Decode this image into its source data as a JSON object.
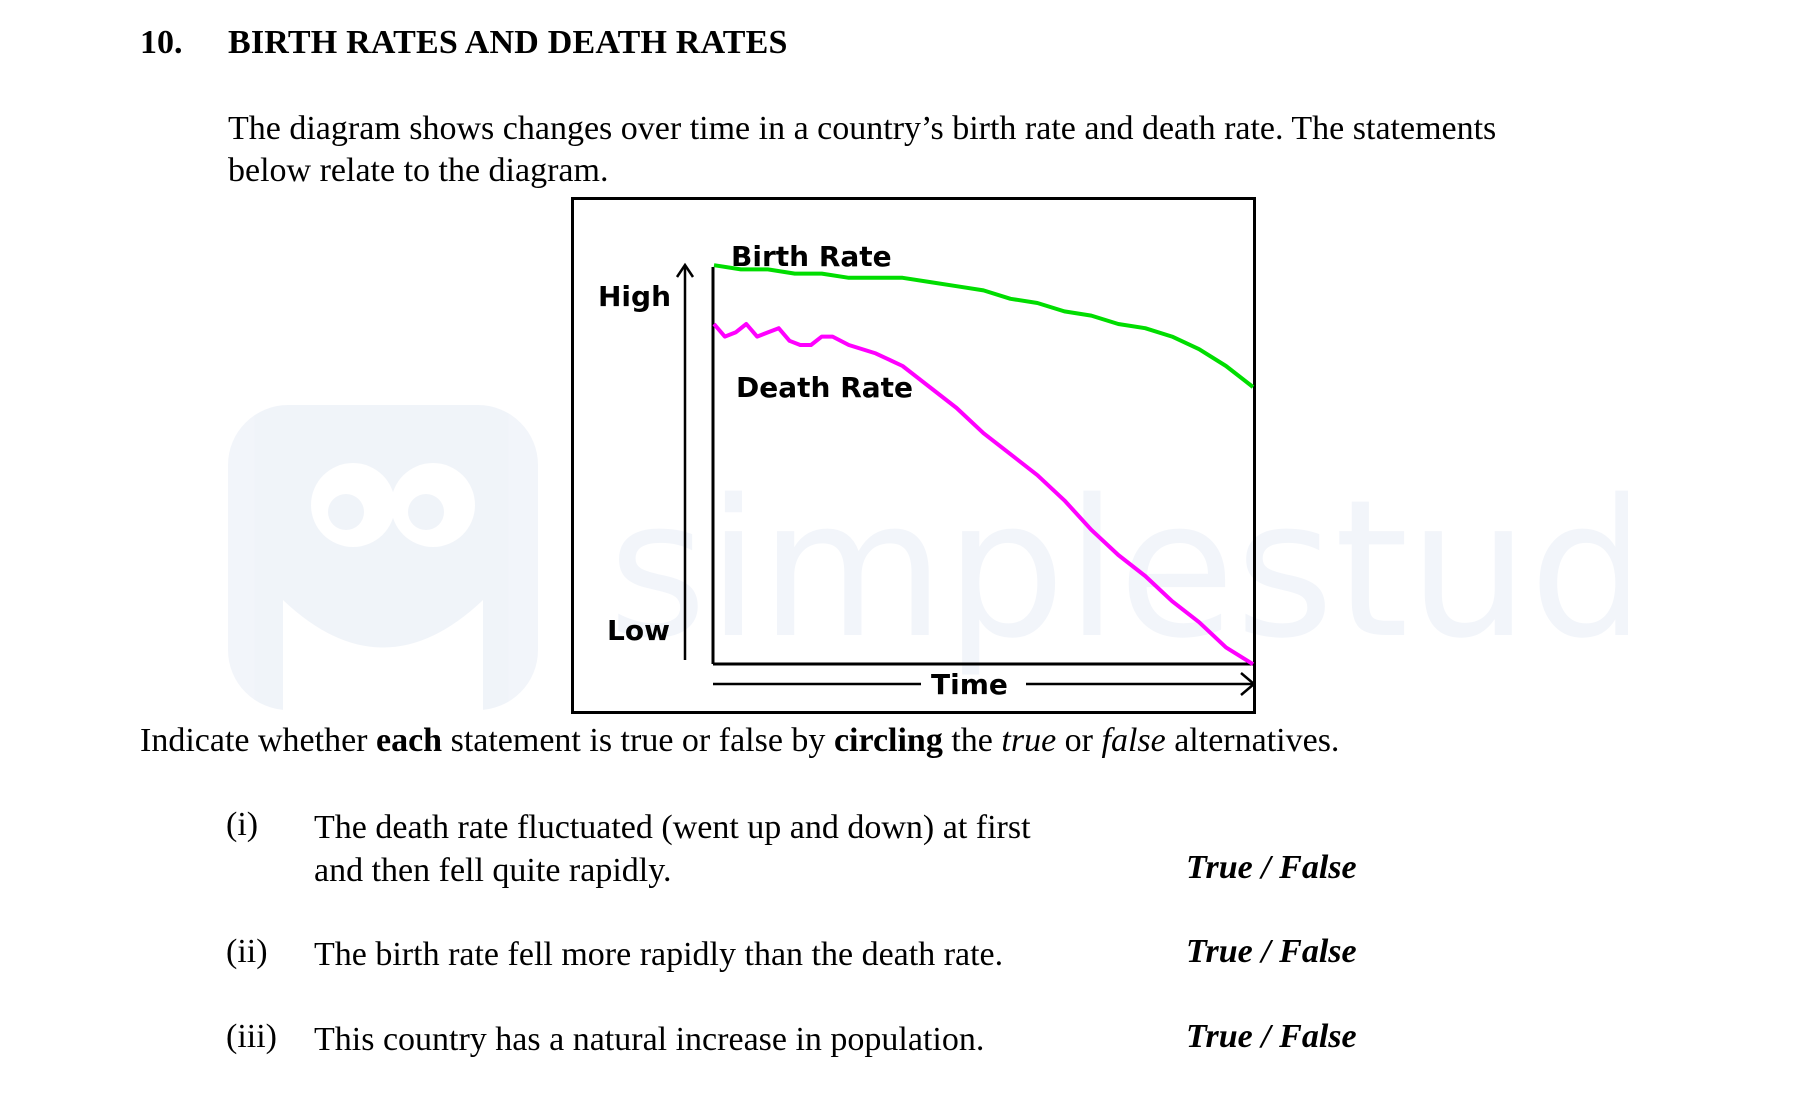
{
  "question": {
    "number": "10.",
    "title": "BIRTH RATES AND DEATH RATES"
  },
  "intro": {
    "line1": "The diagram shows changes over time in a country’s birth rate and death rate. The statements",
    "line2": "below relate to the diagram."
  },
  "watermark": {
    "text": "simplestudy"
  },
  "chart_data": {
    "type": "line",
    "ylabel_high": "High",
    "ylabel_low": "Low",
    "xlabel": "Time",
    "ylim": [
      0,
      100
    ],
    "xlim": [
      0,
      100
    ],
    "series": [
      {
        "name": "Birth Rate",
        "color": "#00dd00",
        "x": [
          0,
          5,
          10,
          15,
          20,
          25,
          30,
          35,
          40,
          45,
          50,
          55,
          60,
          65,
          70,
          75,
          80,
          85,
          90,
          95,
          100
        ],
        "y": [
          94,
          93,
          93,
          92,
          92,
          91,
          91,
          91,
          90,
          89,
          88,
          86,
          85,
          83,
          82,
          80,
          79,
          77,
          74,
          70,
          65
        ]
      },
      {
        "name": "Death Rate",
        "color": "#ff00ff",
        "x": [
          0,
          2,
          4,
          6,
          8,
          10,
          12,
          14,
          16,
          18,
          20,
          22,
          25,
          30,
          35,
          40,
          45,
          50,
          55,
          60,
          65,
          70,
          75,
          80,
          85,
          90,
          95,
          100
        ],
        "y": [
          80,
          77,
          78,
          80,
          77,
          78,
          79,
          76,
          75,
          75,
          77,
          77,
          75,
          73,
          70,
          65,
          60,
          54,
          49,
          44,
          38,
          31,
          25,
          20,
          14,
          9,
          3,
          -1
        ]
      }
    ]
  },
  "instruction": {
    "p1": "Indicate whether ",
    "b1": "each",
    "p2": " statement is true or false by ",
    "b2": "circling",
    "p3": " the ",
    "i1": "true",
    "p4": " or ",
    "i2": "false",
    "p5": " alternatives."
  },
  "statements": [
    {
      "num": "(i)",
      "line1": "The death rate fluctuated (went up and down) at first",
      "line2": "and then fell quite rapidly.",
      "answer": "True / False"
    },
    {
      "num": "(ii)",
      "line1": "The birth rate fell more rapidly than the death rate.",
      "answer": "True / False"
    },
    {
      "num": "(iii)",
      "line1": "This country has a natural increase in population.",
      "answer": "True / False"
    }
  ]
}
